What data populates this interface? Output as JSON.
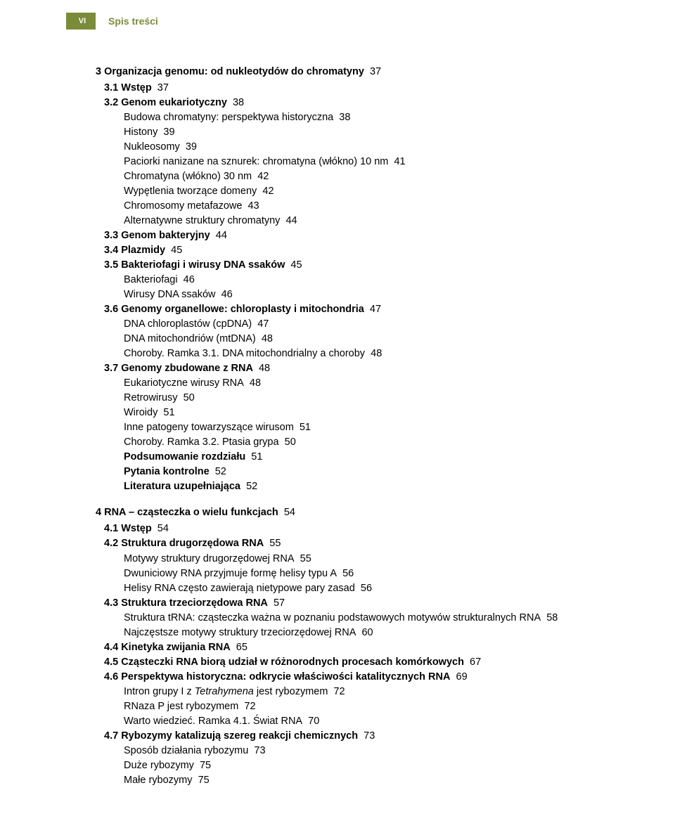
{
  "header": {
    "page_number": "VI",
    "title": "Spis treści",
    "tab_bg": "#7a8b3a",
    "tab_fg": "#ffffff",
    "title_color": "#7a8b3a"
  },
  "chapters": [
    {
      "num": "3",
      "title": "Organizacja genomu: od nukleotydów do chromatyny",
      "page": "37",
      "sections": [
        {
          "num": "3.1",
          "title": "Wstęp",
          "page": "37",
          "subs": []
        },
        {
          "num": "3.2",
          "title": "Genom eukariotyczny",
          "page": "38",
          "subs": [
            {
              "text": "Budowa chromatyny: perspektywa historyczna",
              "page": "38"
            },
            {
              "text": "Histony",
              "page": "39"
            },
            {
              "text": "Nukleosomy",
              "page": "39"
            },
            {
              "text": "Paciorki nanizane na sznurek: chromatyna (włókno) 10 nm",
              "page": "41"
            },
            {
              "text": "Chromatyna (włókno) 30 nm",
              "page": "42"
            },
            {
              "text": "Wypętlenia tworzące domeny",
              "page": "42"
            },
            {
              "text": "Chromosomy metafazowe",
              "page": "43"
            },
            {
              "text": "Alternatywne struktury chromatyny",
              "page": "44"
            }
          ]
        },
        {
          "num": "3.3",
          "title": "Genom bakteryjny",
          "page": "44",
          "subs": []
        },
        {
          "num": "3.4",
          "title": "Plazmidy",
          "page": "45",
          "subs": []
        },
        {
          "num": "3.5",
          "title": "Bakteriofagi i wirusy DNA ssaków",
          "page": "45",
          "subs": [
            {
              "text": "Bakteriofagi",
              "page": "46"
            },
            {
              "text": "Wirusy DNA ssaków",
              "page": "46"
            }
          ]
        },
        {
          "num": "3.6",
          "title": "Genomy organellowe: chloroplasty i mitochondria",
          "page": "47",
          "subs": [
            {
              "text": "DNA chloroplastów (cpDNA)",
              "page": "47"
            },
            {
              "text": "DNA mitochondriów (mtDNA)",
              "page": "48"
            },
            {
              "text": "Choroby. Ramka 3.1. DNA mitochondrialny a choroby",
              "page": "48"
            }
          ]
        },
        {
          "num": "3.7",
          "title": "Genomy zbudowane z RNA",
          "page": "48",
          "subs": [
            {
              "text": "Eukariotyczne wirusy RNA",
              "page": "48"
            },
            {
              "text": "Retrowirusy",
              "page": "50"
            },
            {
              "text": "Wiroidy",
              "page": "51"
            },
            {
              "text": "Inne patogeny towarzyszące wirusom",
              "page": "51"
            },
            {
              "text": "Choroby. Ramka 3.2. Ptasia grypa",
              "page": "50"
            },
            {
              "text": "Podsumowanie rozdziału",
              "page": "51",
              "bold": true
            },
            {
              "text": "Pytania kontrolne",
              "page": "52",
              "bold": true
            },
            {
              "text": "Literatura uzupełniająca",
              "page": "52",
              "bold": true
            }
          ]
        }
      ]
    },
    {
      "num": "4",
      "title": "RNA – cząsteczka o wielu funkcjach",
      "page": "54",
      "sections": [
        {
          "num": "4.1",
          "title": "Wstęp",
          "page": "54",
          "subs": []
        },
        {
          "num": "4.2",
          "title": "Struktura drugorzędowa RNA",
          "page": "55",
          "subs": [
            {
              "text": "Motywy struktury drugorzędowej RNA",
              "page": "55"
            },
            {
              "text": "Dwuniciowy RNA przyjmuje formę helisy typu A",
              "page": "56"
            },
            {
              "text": "Helisy RNA często zawierają nietypowe pary zasad",
              "page": "56"
            }
          ]
        },
        {
          "num": "4.3",
          "title": "Struktura trzeciorzędowa RNA",
          "page": "57",
          "subs": [
            {
              "text": "Struktura tRNA: cząsteczka ważna w poznaniu podstawowych motywów strukturalnych RNA",
              "page": "58"
            },
            {
              "text": "Najczęstsze motywy struktury trzeciorzędowej RNA",
              "page": "60"
            }
          ]
        },
        {
          "num": "4.4",
          "title": "Kinetyka zwijania RNA",
          "page": "65",
          "subs": []
        },
        {
          "num": "4.5",
          "title": "Cząsteczki RNA biorą udział w różnorodnych procesach komórkowych",
          "page": "67",
          "subs": []
        },
        {
          "num": "4.6",
          "title": "Perspektywa historyczna: odkrycie właściwości katalitycznych RNA",
          "page": "69",
          "subs": [
            {
              "html": "Intron grupy I z <span class=\"italic\">Tetrahymena</span> jest rybozymem",
              "page": "72"
            },
            {
              "text": "RNaza P jest rybozymem",
              "page": "72"
            },
            {
              "text": "Warto wiedzieć. Ramka 4.1. Świat RNA",
              "page": "70"
            }
          ]
        },
        {
          "num": "4.7",
          "title": "Rybozymy katalizują szereg reakcji chemicznych",
          "page": "73",
          "subs": [
            {
              "text": "Sposób działania rybozymu",
              "page": "73"
            },
            {
              "text": "Duże rybozymy",
              "page": "75"
            },
            {
              "text": "Małe rybozymy",
              "page": "75"
            }
          ]
        }
      ]
    }
  ]
}
